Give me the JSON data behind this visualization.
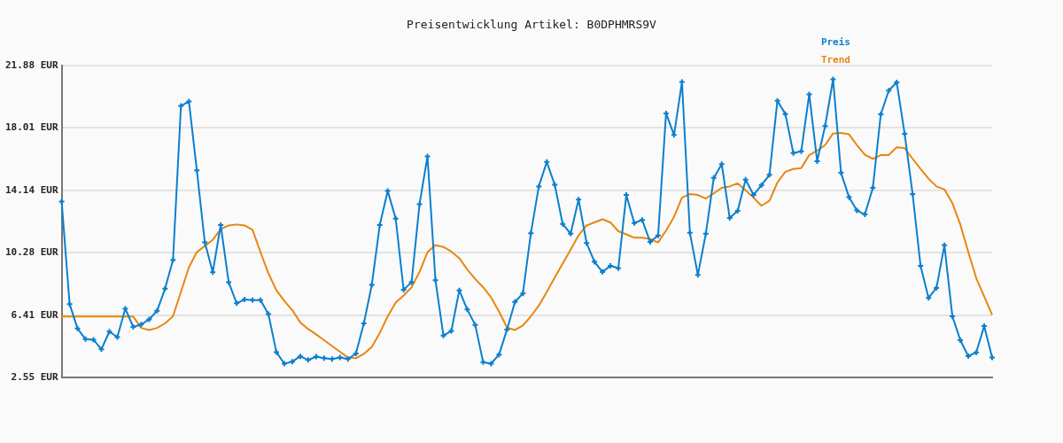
{
  "chart_data": {
    "type": "line",
    "title": "Preisentwicklung Artikel: B0DPHMRS9V",
    "categories": [
      null,
      null,
      null,
      null,
      null,
      null,
      null,
      null,
      null,
      null,
      null,
      null,
      null,
      null,
      null,
      null,
      null,
      null,
      null,
      null,
      null,
      null,
      null,
      null,
      null,
      null,
      null,
      null,
      null,
      null,
      null,
      null,
      null,
      null,
      null,
      null,
      null,
      null,
      null,
      null,
      null,
      null,
      null,
      null,
      null,
      null,
      null,
      null,
      null,
      null,
      null,
      null,
      null,
      null,
      null,
      null,
      null,
      null,
      null,
      null,
      null,
      null,
      null,
      null,
      null,
      null,
      null,
      null,
      null,
      null,
      null,
      null,
      null,
      null,
      null,
      null,
      null,
      null,
      null,
      null,
      null,
      null,
      null,
      null,
      null,
      null,
      null,
      null,
      null,
      null,
      null,
      null,
      null,
      null,
      null,
      null,
      null,
      null,
      null,
      null,
      null,
      null,
      null,
      null,
      null,
      null,
      null,
      null,
      null,
      null,
      null,
      null,
      null,
      null,
      null,
      null,
      null,
      null
    ],
    "series": [
      {
        "name": "Preis",
        "color": "#0a7fcf",
        "marker": "cross",
        "values": [
          13.45,
          7.1,
          5.58,
          4.92,
          4.89,
          4.3,
          5.39,
          5.05,
          6.81,
          5.68,
          5.83,
          6.15,
          6.68,
          8.05,
          9.83,
          19.38,
          19.66,
          15.38,
          10.92,
          9.07,
          11.99,
          8.46,
          7.15,
          7.38,
          7.34,
          7.34,
          6.47,
          4.12,
          3.4,
          3.53,
          3.86,
          3.63,
          3.84,
          3.74,
          3.69,
          3.78,
          3.69,
          4.03,
          5.9,
          8.29,
          11.99,
          14.11,
          12.4,
          7.98,
          8.46,
          13.29,
          16.25,
          8.58,
          5.15,
          5.43,
          7.95,
          6.76,
          5.81,
          3.5,
          3.4,
          3.97,
          5.52,
          7.23,
          7.76,
          11.49,
          14.39,
          15.91,
          14.49,
          12.06,
          11.46,
          13.58,
          10.89,
          9.71,
          9.09,
          9.47,
          9.32,
          13.86,
          12.12,
          12.31,
          10.95,
          11.35,
          18.92,
          17.58,
          20.86,
          11.51,
          8.9,
          11.46,
          14.92,
          15.77,
          12.44,
          12.88,
          14.81,
          13.86,
          14.47,
          15.11,
          19.7,
          18.88,
          16.46,
          16.57,
          20.1,
          15.95,
          18.13,
          21.03,
          15.23,
          13.73,
          12.9,
          12.65,
          14.3,
          18.86,
          20.33,
          20.84,
          17.65,
          13.92,
          9.47,
          7.48,
          8.1,
          10.74,
          6.34,
          4.86,
          3.87,
          4.1,
          5.73,
          3.78
        ]
      },
      {
        "name": "Trend",
        "color": "#e8860f",
        "marker": "none",
        "values": [
          6.32,
          6.32,
          6.32,
          6.32,
          6.32,
          6.32,
          6.32,
          6.32,
          6.32,
          6.32,
          5.62,
          5.49,
          5.62,
          5.9,
          6.34,
          7.85,
          9.37,
          10.32,
          10.7,
          11.08,
          11.74,
          11.97,
          12.03,
          11.97,
          11.7,
          10.32,
          9.0,
          7.95,
          7.29,
          6.72,
          5.96,
          5.55,
          5.22,
          4.86,
          4.5,
          4.14,
          3.78,
          3.74,
          4.01,
          4.44,
          5.3,
          6.34,
          7.19,
          7.63,
          8.14,
          9.09,
          10.32,
          10.75,
          10.64,
          10.35,
          9.94,
          9.24,
          8.65,
          8.14,
          7.51,
          6.63,
          5.64,
          5.49,
          5.77,
          6.34,
          7.0,
          7.85,
          8.74,
          9.61,
          10.47,
          11.36,
          11.97,
          12.16,
          12.35,
          12.16,
          11.61,
          11.42,
          11.21,
          11.21,
          11.13,
          10.92,
          11.65,
          12.5,
          13.69,
          13.92,
          13.86,
          13.64,
          13.96,
          14.3,
          14.39,
          14.58,
          14.15,
          13.69,
          13.19,
          13.5,
          14.63,
          15.3,
          15.47,
          15.53,
          16.33,
          16.61,
          16.95,
          17.67,
          17.71,
          17.62,
          16.95,
          16.35,
          16.1,
          16.33,
          16.33,
          16.82,
          16.76,
          16.1,
          15.47,
          14.87,
          14.39,
          14.2,
          13.35,
          12.03,
          10.32,
          8.71,
          7.57,
          6.43
        ]
      }
    ],
    "ylim": [
      2.55,
      21.88
    ],
    "yticks": [
      {
        "value": 2.55,
        "label": "2.55 EUR"
      },
      {
        "value": 6.41,
        "label": "6.41 EUR"
      },
      {
        "value": 10.28,
        "label": "10.28 EUR"
      },
      {
        "value": 14.14,
        "label": "14.14 EUR"
      },
      {
        "value": 18.01,
        "label": "18.01 EUR"
      },
      {
        "value": 21.88,
        "label": "21.88 EUR"
      }
    ],
    "grid": "y",
    "legend": "top right",
    "tick_labels": "y",
    "line_style": "solid"
  }
}
